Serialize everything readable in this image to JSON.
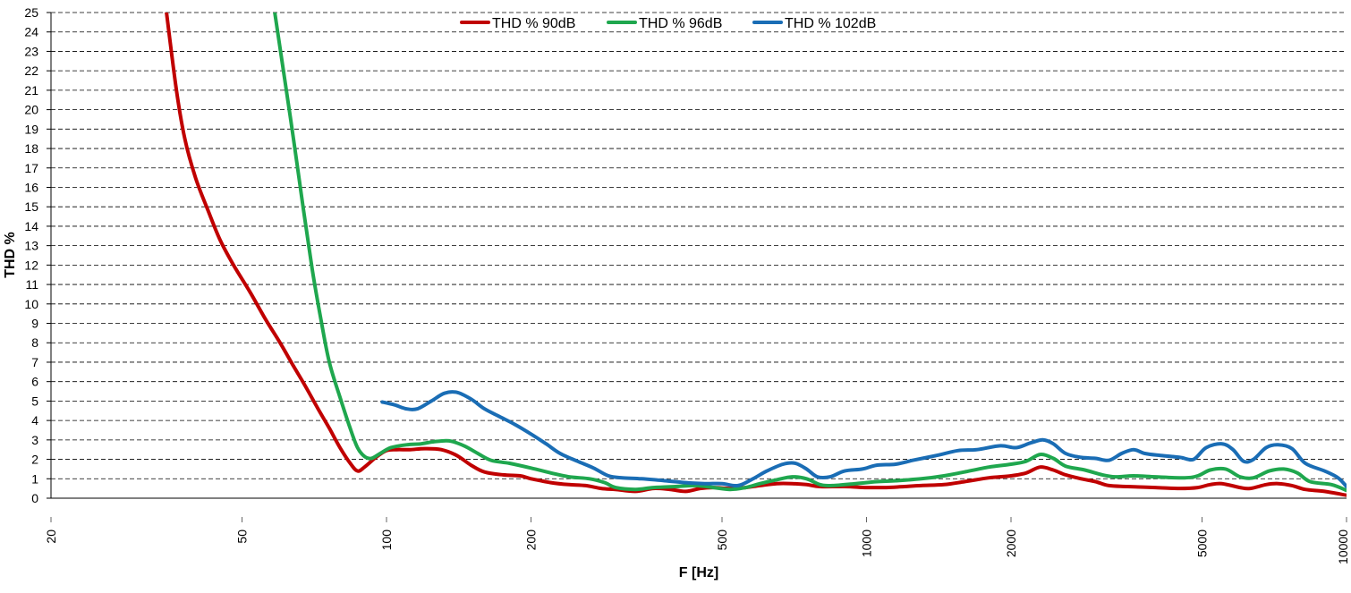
{
  "chart_data": {
    "type": "line",
    "xscale": "log",
    "xlim": [
      20,
      10000
    ],
    "ylim": [
      0,
      25
    ],
    "xlabel": "F [Hz]",
    "ylabel": "THD %",
    "grid": "horizontal dashed",
    "legend_position": "top-center",
    "x_ticks": [
      20,
      50,
      100,
      200,
      500,
      1000,
      2000,
      5000,
      10000
    ],
    "x_tick_labels": [
      "20",
      "50",
      "100",
      "200",
      "500",
      "1000",
      "2000",
      "5000",
      "10000"
    ],
    "y_ticks": [
      0,
      1,
      2,
      3,
      4,
      5,
      6,
      7,
      8,
      9,
      10,
      11,
      12,
      13,
      14,
      15,
      16,
      17,
      18,
      19,
      20,
      21,
      22,
      23,
      24,
      25
    ],
    "y_tick_labels": [
      "0",
      "1",
      "2",
      "3",
      "4",
      "5",
      "6",
      "7",
      "8",
      "9",
      "10",
      "11",
      "12",
      "13",
      "14",
      "15",
      "16",
      "17",
      "18",
      "19",
      "20",
      "21",
      "22",
      "23",
      "24",
      "25"
    ],
    "series": [
      {
        "name": "THD % 90dB",
        "color": "#c00000",
        "points": [
          [
            34.8,
            25
          ],
          [
            36.5,
            21
          ],
          [
            38,
            18.5
          ],
          [
            40,
            16.5
          ],
          [
            42.5,
            14.8
          ],
          [
            45,
            13.3
          ],
          [
            48,
            12
          ],
          [
            52,
            10.6
          ],
          [
            56,
            9.2
          ],
          [
            60,
            8
          ],
          [
            64,
            6.8
          ],
          [
            68,
            5.7
          ],
          [
            72,
            4.6
          ],
          [
            76,
            3.6
          ],
          [
            80,
            2.6
          ],
          [
            84,
            1.8
          ],
          [
            87,
            1.4
          ],
          [
            90,
            1.6
          ],
          [
            95,
            2.1
          ],
          [
            100,
            2.45
          ],
          [
            105,
            2.5
          ],
          [
            112,
            2.5
          ],
          [
            120,
            2.55
          ],
          [
            130,
            2.5
          ],
          [
            140,
            2.2
          ],
          [
            150,
            1.7
          ],
          [
            160,
            1.35
          ],
          [
            175,
            1.2
          ],
          [
            190,
            1.15
          ],
          [
            200,
            1.0
          ],
          [
            220,
            0.8
          ],
          [
            240,
            0.7
          ],
          [
            260,
            0.65
          ],
          [
            280,
            0.5
          ],
          [
            300,
            0.45
          ],
          [
            330,
            0.35
          ],
          [
            360,
            0.5
          ],
          [
            390,
            0.45
          ],
          [
            420,
            0.35
          ],
          [
            450,
            0.5
          ],
          [
            480,
            0.55
          ],
          [
            520,
            0.5
          ],
          [
            560,
            0.55
          ],
          [
            600,
            0.65
          ],
          [
            650,
            0.75
          ],
          [
            700,
            0.75
          ],
          [
            750,
            0.7
          ],
          [
            800,
            0.6
          ],
          [
            900,
            0.6
          ],
          [
            1000,
            0.55
          ],
          [
            1100,
            0.55
          ],
          [
            1200,
            0.6
          ],
          [
            1300,
            0.65
          ],
          [
            1450,
            0.7
          ],
          [
            1600,
            0.85
          ],
          [
            1800,
            1.05
          ],
          [
            2000,
            1.15
          ],
          [
            2150,
            1.3
          ],
          [
            2300,
            1.6
          ],
          [
            2450,
            1.45
          ],
          [
            2600,
            1.2
          ],
          [
            2800,
            1.0
          ],
          [
            3000,
            0.85
          ],
          [
            3200,
            0.65
          ],
          [
            3500,
            0.6
          ],
          [
            4000,
            0.55
          ],
          [
            4500,
            0.5
          ],
          [
            4900,
            0.55
          ],
          [
            5200,
            0.7
          ],
          [
            5500,
            0.75
          ],
          [
            6000,
            0.55
          ],
          [
            6300,
            0.5
          ],
          [
            6800,
            0.7
          ],
          [
            7200,
            0.75
          ],
          [
            7700,
            0.65
          ],
          [
            8200,
            0.45
          ],
          [
            9000,
            0.35
          ],
          [
            10000,
            0.15
          ]
        ]
      },
      {
        "name": "THD % 96dB",
        "color": "#1fa74e",
        "points": [
          [
            58.5,
            25
          ],
          [
            61,
            22
          ],
          [
            64,
            18.5
          ],
          [
            67,
            15
          ],
          [
            70,
            11.8
          ],
          [
            73,
            9.2
          ],
          [
            76,
            7
          ],
          [
            80,
            5.2
          ],
          [
            84,
            3.6
          ],
          [
            87,
            2.6
          ],
          [
            90,
            2.15
          ],
          [
            93,
            2.05
          ],
          [
            97,
            2.3
          ],
          [
            102,
            2.6
          ],
          [
            110,
            2.75
          ],
          [
            118,
            2.8
          ],
          [
            125,
            2.9
          ],
          [
            135,
            2.95
          ],
          [
            145,
            2.7
          ],
          [
            155,
            2.3
          ],
          [
            165,
            1.95
          ],
          [
            180,
            1.8
          ],
          [
            200,
            1.55
          ],
          [
            220,
            1.3
          ],
          [
            240,
            1.1
          ],
          [
            265,
            1.0
          ],
          [
            285,
            0.8
          ],
          [
            300,
            0.55
          ],
          [
            330,
            0.45
          ],
          [
            360,
            0.55
          ],
          [
            400,
            0.6
          ],
          [
            440,
            0.65
          ],
          [
            480,
            0.55
          ],
          [
            520,
            0.45
          ],
          [
            560,
            0.55
          ],
          [
            600,
            0.75
          ],
          [
            650,
            0.95
          ],
          [
            700,
            1.1
          ],
          [
            750,
            1.0
          ],
          [
            800,
            0.7
          ],
          [
            850,
            0.65
          ],
          [
            950,
            0.75
          ],
          [
            1050,
            0.85
          ],
          [
            1150,
            0.9
          ],
          [
            1300,
            1.0
          ],
          [
            1450,
            1.15
          ],
          [
            1600,
            1.35
          ],
          [
            1800,
            1.6
          ],
          [
            2000,
            1.75
          ],
          [
            2150,
            1.9
          ],
          [
            2300,
            2.25
          ],
          [
            2450,
            2.05
          ],
          [
            2600,
            1.65
          ],
          [
            2850,
            1.45
          ],
          [
            3100,
            1.2
          ],
          [
            3300,
            1.1
          ],
          [
            3600,
            1.15
          ],
          [
            4000,
            1.1
          ],
          [
            4600,
            1.05
          ],
          [
            4900,
            1.15
          ],
          [
            5200,
            1.45
          ],
          [
            5600,
            1.5
          ],
          [
            6000,
            1.1
          ],
          [
            6400,
            1.05
          ],
          [
            6900,
            1.4
          ],
          [
            7400,
            1.5
          ],
          [
            7900,
            1.3
          ],
          [
            8400,
            0.85
          ],
          [
            9300,
            0.7
          ],
          [
            10000,
            0.4
          ]
        ]
      },
      {
        "name": "THD % 102dB",
        "color": "#1a6db5",
        "points": [
          [
            98,
            4.95
          ],
          [
            104,
            4.8
          ],
          [
            110,
            4.6
          ],
          [
            116,
            4.6
          ],
          [
            124,
            5.0
          ],
          [
            132,
            5.4
          ],
          [
            140,
            5.45
          ],
          [
            150,
            5.1
          ],
          [
            160,
            4.6
          ],
          [
            172,
            4.2
          ],
          [
            185,
            3.8
          ],
          [
            200,
            3.3
          ],
          [
            215,
            2.8
          ],
          [
            230,
            2.3
          ],
          [
            250,
            1.9
          ],
          [
            270,
            1.55
          ],
          [
            290,
            1.15
          ],
          [
            310,
            1.05
          ],
          [
            340,
            1.0
          ],
          [
            380,
            0.9
          ],
          [
            420,
            0.8
          ],
          [
            460,
            0.75
          ],
          [
            500,
            0.75
          ],
          [
            540,
            0.65
          ],
          [
            580,
            1.0
          ],
          [
            620,
            1.4
          ],
          [
            670,
            1.75
          ],
          [
            710,
            1.8
          ],
          [
            750,
            1.5
          ],
          [
            790,
            1.1
          ],
          [
            840,
            1.1
          ],
          [
            900,
            1.4
          ],
          [
            980,
            1.5
          ],
          [
            1050,
            1.7
          ],
          [
            1150,
            1.75
          ],
          [
            1250,
            1.95
          ],
          [
            1400,
            2.2
          ],
          [
            1550,
            2.45
          ],
          [
            1700,
            2.5
          ],
          [
            1900,
            2.7
          ],
          [
            2050,
            2.6
          ],
          [
            2200,
            2.85
          ],
          [
            2330,
            3.0
          ],
          [
            2450,
            2.8
          ],
          [
            2600,
            2.3
          ],
          [
            2800,
            2.1
          ],
          [
            3000,
            2.05
          ],
          [
            3200,
            1.95
          ],
          [
            3400,
            2.3
          ],
          [
            3600,
            2.5
          ],
          [
            3800,
            2.3
          ],
          [
            4100,
            2.2
          ],
          [
            4500,
            2.1
          ],
          [
            4800,
            2.0
          ],
          [
            5100,
            2.6
          ],
          [
            5500,
            2.8
          ],
          [
            5800,
            2.5
          ],
          [
            6100,
            1.9
          ],
          [
            6400,
            2.0
          ],
          [
            6800,
            2.6
          ],
          [
            7200,
            2.75
          ],
          [
            7700,
            2.55
          ],
          [
            8200,
            1.8
          ],
          [
            9000,
            1.4
          ],
          [
            9600,
            1.05
          ],
          [
            10000,
            0.6
          ]
        ]
      }
    ]
  }
}
